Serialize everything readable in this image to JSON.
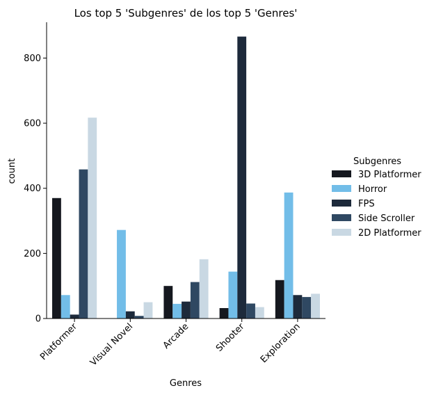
{
  "chart_data": {
    "type": "bar",
    "title": "Los top 5 'Subgenres' de los top 5 'Genres'",
    "xlabel": "Genres",
    "ylabel": "count",
    "ylim": [
      0,
      910
    ],
    "yticks": [
      0,
      200,
      400,
      600,
      800
    ],
    "categories": [
      "Platformer",
      "Visual Novel",
      "Arcade",
      "Shooter",
      "Exploration"
    ],
    "legend": {
      "title": "Subgenres",
      "position": "right"
    },
    "grid": false,
    "series": [
      {
        "name": "3D Platformer",
        "color": "#15181f",
        "values": [
          370,
          0,
          100,
          32,
          118
        ]
      },
      {
        "name": "Horror",
        "color": "#72bde8",
        "values": [
          72,
          272,
          45,
          144,
          387
        ]
      },
      {
        "name": "FPS",
        "color": "#1d2a3b",
        "values": [
          12,
          22,
          52,
          866,
          72
        ]
      },
      {
        "name": "Side Scroller",
        "color": "#2f4862",
        "values": [
          458,
          8,
          112,
          46,
          66
        ]
      },
      {
        "name": "2D Platformer",
        "color": "#c9d8e3",
        "values": [
          617,
          50,
          182,
          35,
          76
        ]
      }
    ]
  }
}
